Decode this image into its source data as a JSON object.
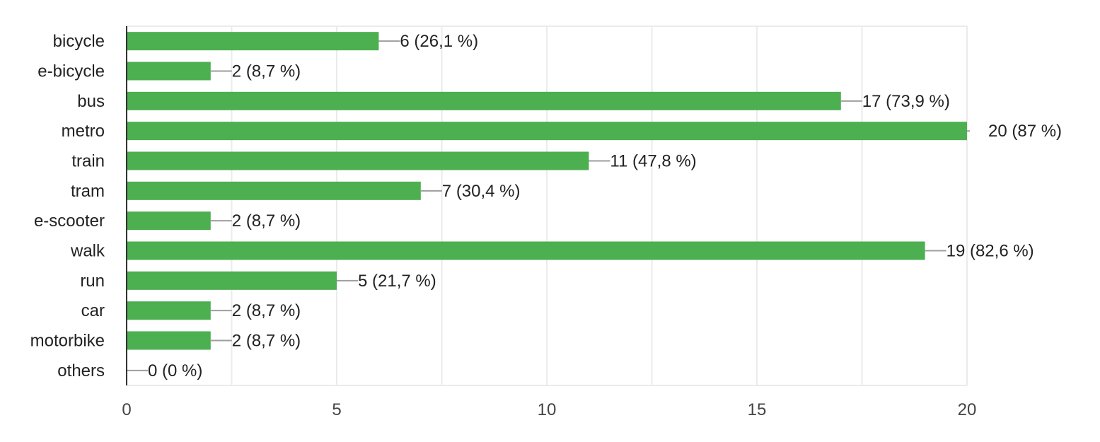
{
  "chart_data": {
    "type": "bar",
    "orientation": "horizontal",
    "categories": [
      "bicycle",
      "e-bicycle",
      "bus",
      "metro",
      "train",
      "tram",
      "e-scooter",
      "walk",
      "run",
      "car",
      "motorbike",
      "others"
    ],
    "values": [
      6,
      2,
      17,
      20,
      11,
      7,
      2,
      19,
      5,
      2,
      2,
      0
    ],
    "data_labels": [
      "6 (26,1 %)",
      "2 (8,7 %)",
      "17 (73,9 %)",
      "20 (87 %)",
      "11 (47,8 %)",
      "7 (30,4 %)",
      "2 (8,7 %)",
      "19 (82,6 %)",
      "5 (21,7 %)",
      "2 (8,7 %)",
      "2 (8,7 %)",
      "0 (0 %)"
    ],
    "xlim": [
      0,
      20
    ],
    "xticks": [
      0,
      5,
      10,
      15,
      20
    ],
    "xtick_labels": [
      "0",
      "5",
      "10",
      "15",
      "20"
    ],
    "minor_gridlines": [
      2.5,
      7.5,
      12.5,
      17.5
    ],
    "grid": true,
    "bar_color": "#4caf50",
    "title": "",
    "xlabel": "",
    "ylabel": ""
  }
}
